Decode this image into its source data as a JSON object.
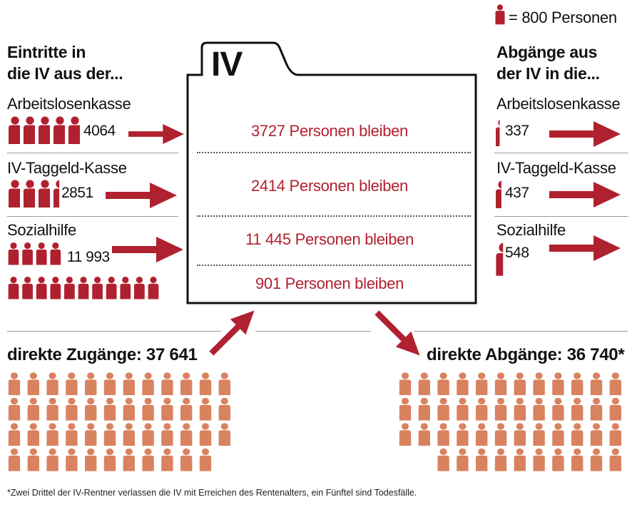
{
  "legend": {
    "text": "= 800 Personen",
    "unit": 800,
    "icon": "person-icon"
  },
  "colors": {
    "dark": "#b0212f",
    "light": "#d9825f"
  },
  "left_heading": [
    "Eintritte in",
    "die IV aus der..."
  ],
  "right_heading": [
    "Abgänge aus",
    "der IV in die..."
  ],
  "box_title": "IV",
  "rows": [
    {
      "in_label": "Arbeitslosenkasse",
      "in_value": "4064",
      "in_icons": 5,
      "stay": "3727 Personen bleiben",
      "out_label": "Arbeitslosenkasse",
      "out_value": "337",
      "out_icons": 0.42
    },
    {
      "in_label": "IV-Taggeld-Kasse",
      "in_value": "2851",
      "in_icons": 3.56,
      "stay": "2414 Personen bleiben",
      "out_label": "IV-Taggeld-Kasse",
      "out_value": "437",
      "out_icons": 0.55
    },
    {
      "in_label": "Sozialhilfe",
      "in_value": "11 993",
      "in_icons": 15,
      "stay": "11 445 Personen bleiben",
      "out_label": "Sozialhilfe",
      "out_value": "548",
      "out_icons": 0.68
    }
  ],
  "extra_stay": "901 Personen bleiben",
  "direct_in": {
    "label": "direkte Zugänge: 37 641",
    "icons": 47
  },
  "direct_out": {
    "label": "direkte Abgänge: 36 740*",
    "icons": 46
  },
  "footnote": "*Zwei Drittel der IV-Rentner verlassen die IV mit Erreichen des Rentenalters, ein Fünftel sind Todesfälle."
}
